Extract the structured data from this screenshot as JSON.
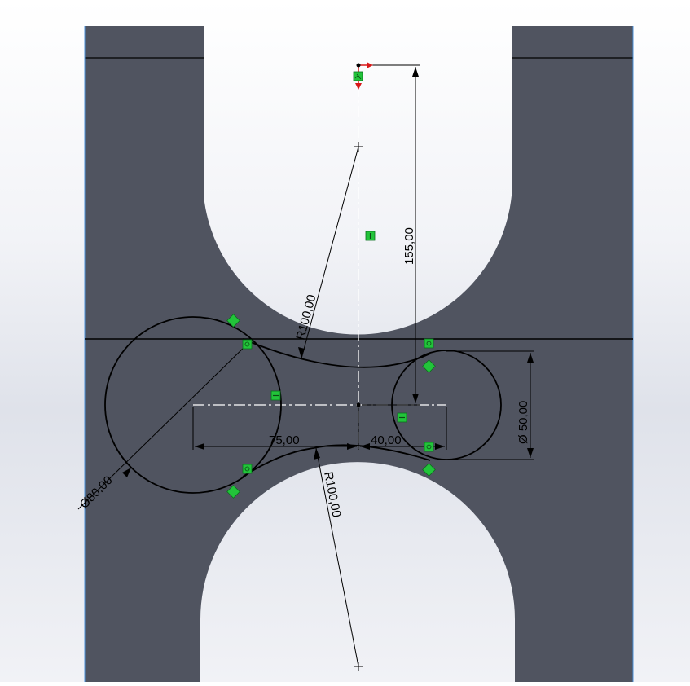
{
  "sketch": {
    "part_color": "#505460",
    "line_color": "#000000",
    "relation_color": "#22c43a",
    "origin_color": "#d81818",
    "dimensions": {
      "r_upper": "R100,00",
      "height": "155,00",
      "left_offset": "75,00",
      "right_offset": "40,00",
      "dia_small": "Ø 50,00",
      "dia_large": "Ø80,00",
      "r_lower": "R100,00"
    },
    "relation_icons": [
      "tangent-icon",
      "vertical-icon",
      "horizontal-icon",
      "coincident-icon"
    ]
  }
}
